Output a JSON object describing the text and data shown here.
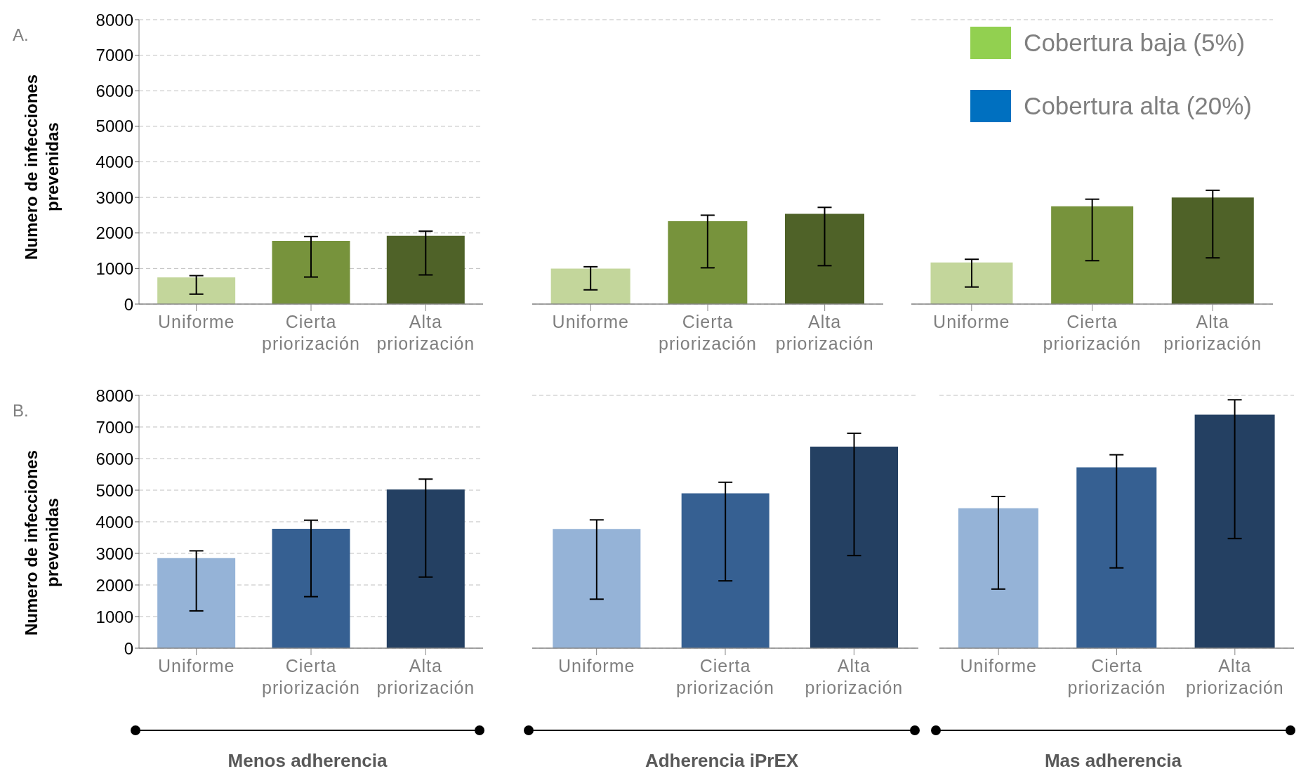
{
  "chart_data": [
    {
      "type": "bar",
      "annotations": [
        "A."
      ],
      "ylabel": "Numero de infecciones prevenidas",
      "categories": [
        "Uniforme",
        "Cierta priorización",
        "Alta priorización"
      ],
      "series": [
        {
          "colors": [
            "#c3d69b",
            "#77933c",
            "#4f6228"
          ],
          "values": [
            750,
            1780,
            1920
          ],
          "errors": [
            [
              280,
              800
            ],
            [
              760,
              1900
            ],
            [
              820,
              2050
            ]
          ]
        }
      ],
      "ylim": [
        0,
        8000
      ],
      "yticks": [
        0,
        1000,
        2000,
        3000,
        4000,
        5000,
        6000,
        7000,
        8000
      ],
      "grid": "y"
    },
    {
      "type": "bar",
      "categories": [
        "Uniforme",
        "Cierta priorización",
        "Alta priorización"
      ],
      "series": [
        {
          "colors": [
            "#c3d69b",
            "#77933c",
            "#4f6228"
          ],
          "values": [
            1000,
            2330,
            2540
          ],
          "errors": [
            [
              400,
              1050
            ],
            [
              1020,
              2500
            ],
            [
              1080,
              2720
            ]
          ]
        }
      ],
      "ylim": [
        0,
        8000
      ],
      "yticks": [
        0,
        1000,
        2000,
        3000,
        4000,
        5000,
        6000,
        7000,
        8000
      ],
      "grid": "y",
      "tick_labels": "x"
    },
    {
      "type": "bar",
      "categories": [
        "Uniforme",
        "Cierta priorización",
        "Alta priorización"
      ],
      "series": [
        {
          "name": "Cobertura baja (5%)",
          "color": "#92d050",
          "colors": [
            "#c3d69b",
            "#77933c",
            "#4f6228"
          ],
          "values": [
            1170,
            2750,
            3000
          ],
          "errors": [
            [
              480,
              1260
            ],
            [
              1220,
              2950
            ],
            [
              1300,
              3200
            ]
          ]
        }
      ],
      "ylim": [
        0,
        8000
      ],
      "yticks": [
        0,
        1000,
        2000,
        3000,
        4000,
        5000,
        6000,
        7000,
        8000
      ],
      "grid": "y",
      "tick_labels": "x",
      "legend": "top right"
    },
    {
      "type": "bar",
      "annotations": [
        "B."
      ],
      "ylabel": "Numero de infecciones prevenidas",
      "xlabel": "Menos adherencia",
      "categories": [
        "Uniforme",
        "Cierta priorización",
        "Alta priorización"
      ],
      "series": [
        {
          "colors": [
            "#95b3d7",
            "#366092",
            "#244062"
          ],
          "values": [
            2850,
            3780,
            5020
          ],
          "errors": [
            [
              1180,
              3080
            ],
            [
              1630,
              4050
            ],
            [
              2250,
              5350
            ]
          ]
        }
      ],
      "ylim": [
        0,
        8000
      ],
      "yticks": [
        0,
        1000,
        2000,
        3000,
        4000,
        5000,
        6000,
        7000,
        8000
      ],
      "grid": "y"
    },
    {
      "type": "bar",
      "xlabel": "Adherencia iPrEX",
      "categories": [
        "Uniforme",
        "Cierta priorización",
        "Alta priorización"
      ],
      "series": [
        {
          "colors": [
            "#95b3d7",
            "#366092",
            "#244062"
          ],
          "values": [
            3770,
            4900,
            6380
          ],
          "errors": [
            [
              1550,
              4060
            ],
            [
              2130,
              5250
            ],
            [
              2930,
              6800
            ]
          ]
        }
      ],
      "ylim": [
        0,
        8000
      ],
      "yticks": [
        0,
        1000,
        2000,
        3000,
        4000,
        5000,
        6000,
        7000,
        8000
      ],
      "grid": "y",
      "tick_labels": "x"
    },
    {
      "type": "bar",
      "xlabel": "Mas adherencia",
      "categories": [
        "Uniforme",
        "Cierta priorización",
        "Alta priorización"
      ],
      "series": [
        {
          "name": "Cobertura alta (20%)",
          "color": "#0070c0",
          "colors": [
            "#95b3d7",
            "#366092",
            "#244062"
          ],
          "values": [
            4430,
            5720,
            7390
          ],
          "errors": [
            [
              1870,
              4800
            ],
            [
              2540,
              6120
            ],
            [
              3470,
              7860
            ]
          ]
        }
      ],
      "ylim": [
        0,
        8000
      ],
      "yticks": [
        0,
        1000,
        2000,
        3000,
        4000,
        5000,
        6000,
        7000,
        8000
      ],
      "grid": "y",
      "tick_labels": "x"
    }
  ]
}
